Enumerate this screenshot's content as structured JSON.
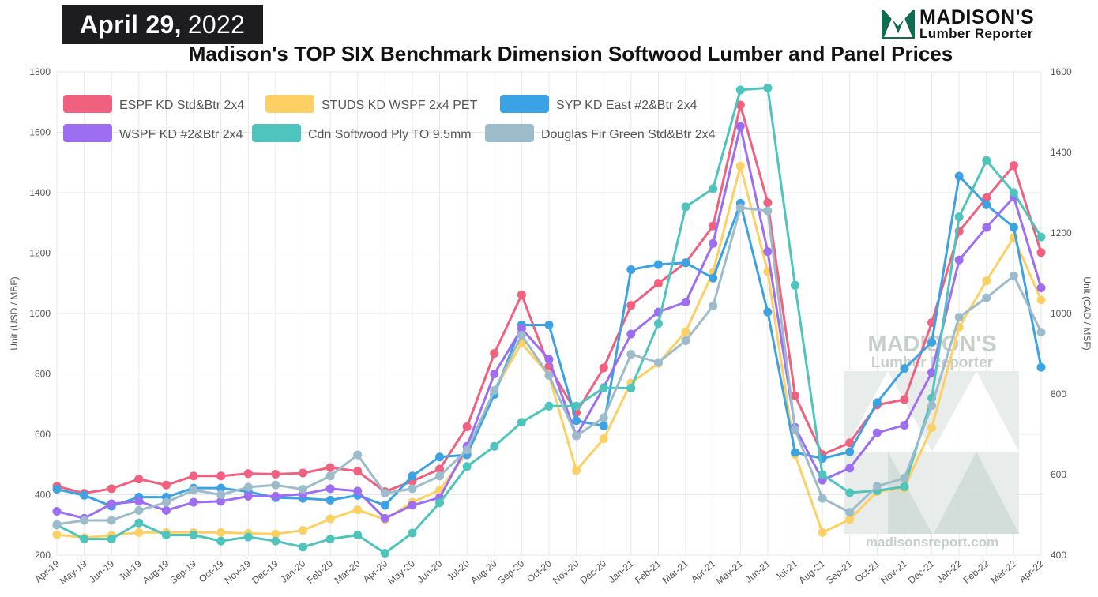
{
  "header": {
    "date_bold": "April 29,",
    "date_year": "2022",
    "logo_line1": "MADISON'S",
    "logo_line2": "Lumber Reporter"
  },
  "watermark": {
    "line1": "MADISON'S",
    "line2": "Lumber Reporter",
    "url": "madisonsreport.com"
  },
  "colors": {
    "espf": "#f0607f",
    "studs": "#fdd063",
    "syp": "#3ba2e3",
    "wspf": "#9d6ef2",
    "ply": "#4ec4bd",
    "dfir": "#9dbccb",
    "grid": "#e7e7e7"
  },
  "chart_data": {
    "type": "line",
    "title": "Madison's TOP SIX Benchmark Dimension Softwood Lumber and Panel Prices",
    "ylabel": "Unit (USD / MBF)",
    "y2label": "Unit (CAD / MSF)",
    "ylim": [
      200,
      1800
    ],
    "y2lim": [
      400,
      1600
    ],
    "yticks": [
      "200",
      "400",
      "600",
      "800",
      "1000",
      "1200",
      "1400",
      "1600",
      "1800"
    ],
    "y2ticks": [
      "400",
      "600",
      "800",
      "1000",
      "1200",
      "1400",
      "1600"
    ],
    "grid": true,
    "legend_position": "top-left",
    "categories": [
      "Apr-19",
      "May-19",
      "Jun-19",
      "Jul-19",
      "Aug-19",
      "Sep-19",
      "Oct-19",
      "Nov-19",
      "Dec-19",
      "Jan-20",
      "Feb-20",
      "Mar-20",
      "Apr-20",
      "May-20",
      "Jun-20",
      "Jul-20",
      "Aug-20",
      "Sep-20",
      "Oct-20",
      "Nov-20",
      "Dec-20",
      "Jan-21",
      "Feb-21",
      "Mar-21",
      "Apr-21",
      "May-21",
      "Jun-21",
      "Jul-21",
      "Aug-21",
      "Sep-21",
      "Oct-21",
      "Nov-21",
      "Dec-21",
      "Jan-22",
      "Feb-22",
      "Mar-22",
      "Apr-22"
    ],
    "series": [
      {
        "name": "ESPF KD Std&Btr 2x4",
        "color_key": "espf",
        "axis": "left",
        "values": [
          428,
          405,
          420,
          452,
          432,
          462,
          462,
          470,
          468,
          472,
          490,
          478,
          410,
          445,
          485,
          625,
          868,
          1062,
          825,
          672,
          820,
          1027,
          1100,
          1168,
          1290,
          1690,
          1367,
          728,
          533,
          572,
          697,
          715,
          970,
          1272,
          1383,
          1490,
          1202
        ]
      },
      {
        "name": "STUDS KD WSPF 2x4 PET",
        "color_key": "studs",
        "axis": "left",
        "values": [
          268,
          258,
          265,
          275,
          275,
          275,
          275,
          272,
          270,
          282,
          320,
          350,
          318,
          375,
          415,
          540,
          745,
          902,
          795,
          480,
          585,
          770,
          835,
          940,
          1137,
          1488,
          1138,
          533,
          275,
          318,
          410,
          422,
          622,
          955,
          1108,
          1252,
          1045
        ]
      },
      {
        "name": "SYP KD East #2&Btr 2x4",
        "color_key": "syp",
        "axis": "left",
        "values": [
          418,
          398,
          362,
          392,
          392,
          422,
          422,
          410,
          390,
          388,
          382,
          398,
          365,
          462,
          525,
          532,
          732,
          962,
          962,
          645,
          628,
          1145,
          1162,
          1168,
          1117,
          1365,
          1005,
          540,
          520,
          542,
          705,
          818,
          905,
          1455,
          1360,
          1285,
          822
        ]
      },
      {
        "name": "WSPF KD #2&Btr 2x4",
        "color_key": "wspf",
        "axis": "left",
        "values": [
          345,
          322,
          370,
          378,
          348,
          375,
          378,
          395,
          395,
          402,
          420,
          412,
          322,
          365,
          390,
          560,
          800,
          950,
          848,
          595,
          755,
          932,
          1005,
          1038,
          1232,
          1620,
          1205,
          623,
          448,
          488,
          605,
          630,
          805,
          1177,
          1285,
          1385,
          1085
        ]
      },
      {
        "name": "Cdn Softwood Ply TO 9.5mm",
        "color_key": "ply",
        "axis": "right",
        "values": [
          475,
          440,
          440,
          480,
          450,
          450,
          435,
          445,
          435,
          420,
          440,
          450,
          405,
          455,
          530,
          620,
          670,
          730,
          770,
          770,
          815,
          815,
          975,
          1265,
          1310,
          1555,
          1560,
          1070,
          600,
          555,
          560,
          570,
          790,
          1240,
          1380,
          1300,
          1190
        ]
      },
      {
        "name": "Douglas Fir Green Std&Btr 2x4",
        "color_key": "dfir",
        "axis": "left",
        "values": [
          302,
          315,
          315,
          348,
          375,
          415,
          400,
          425,
          432,
          418,
          462,
          532,
          405,
          420,
          462,
          548,
          745,
          928,
          795,
          595,
          655,
          865,
          838,
          910,
          1025,
          1350,
          1340,
          615,
          388,
          342,
          428,
          455,
          695,
          988,
          1052,
          1125,
          938
        ]
      }
    ]
  }
}
